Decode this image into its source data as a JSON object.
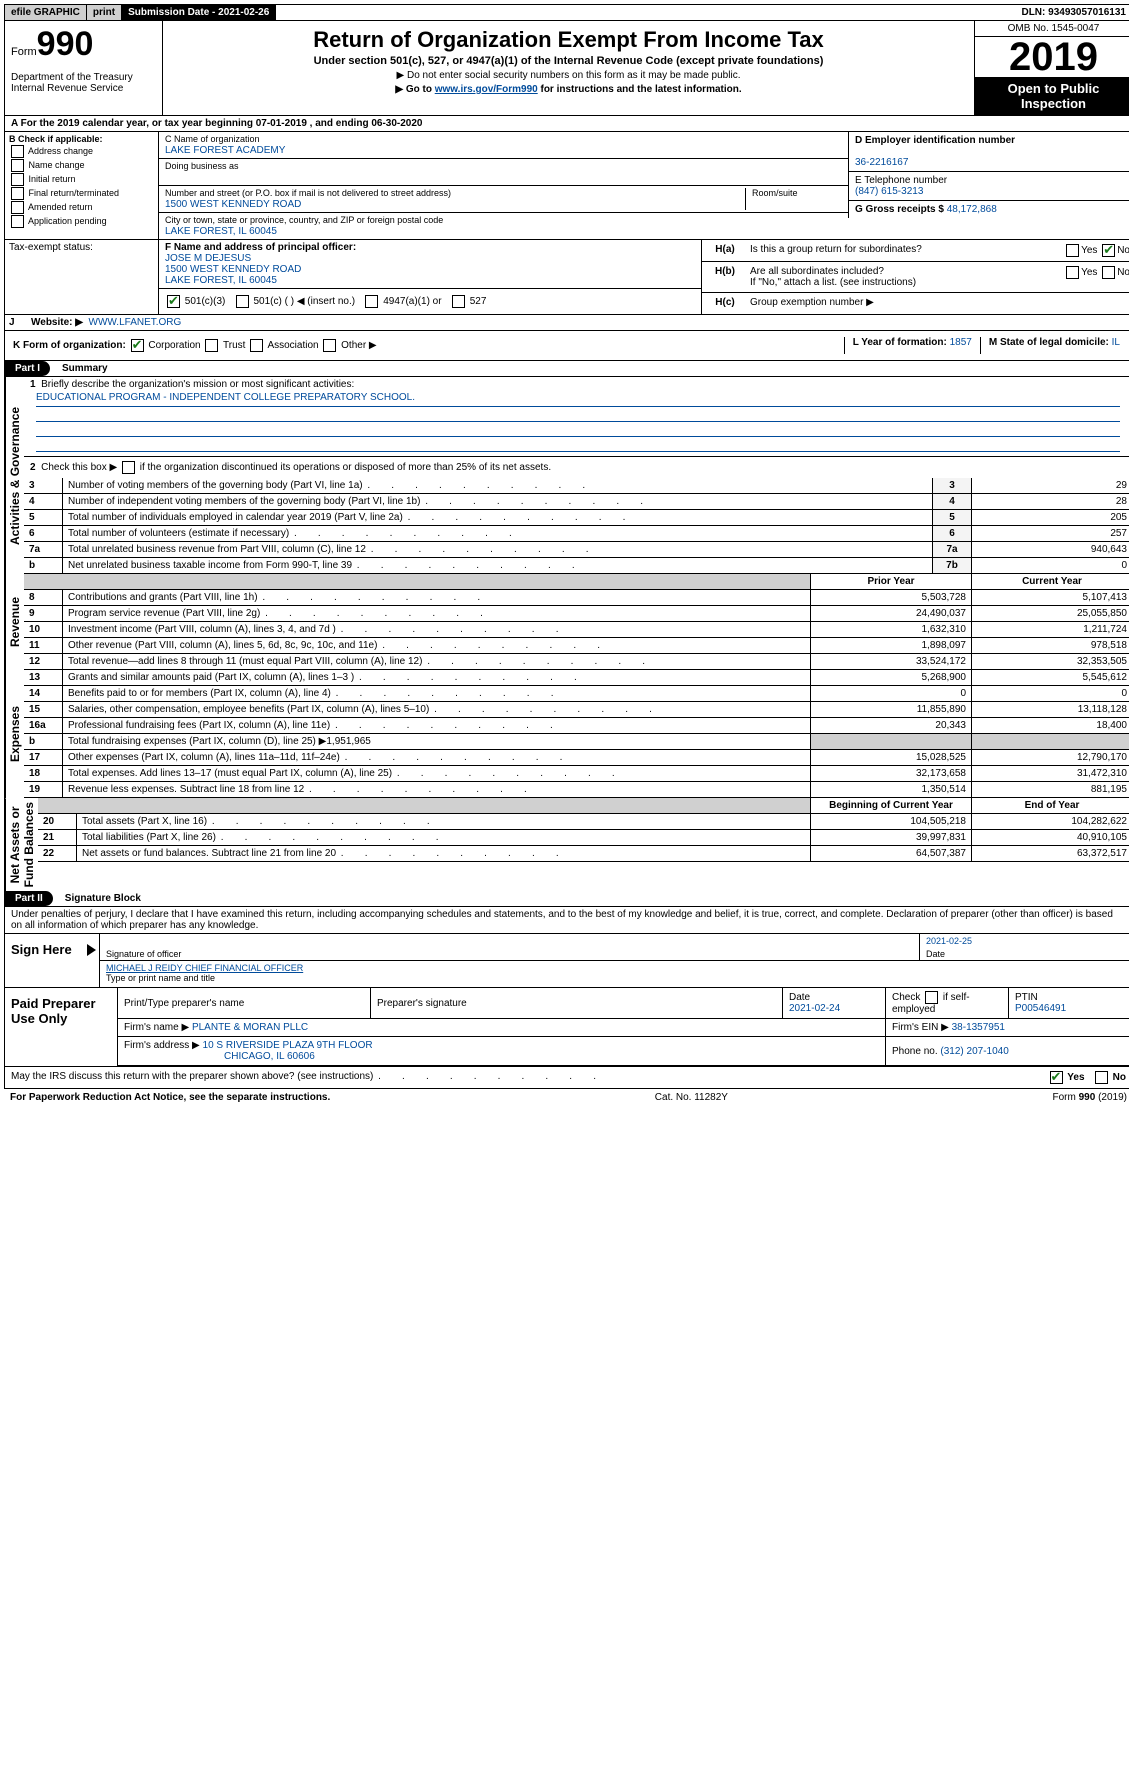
{
  "topbar": {
    "efile": "efile GRAPHIC",
    "print": "print",
    "submission": "Submission Date - 2021-02-26",
    "dln": "DLN: 93493057016131"
  },
  "header": {
    "form_word": "Form",
    "form_num": "990",
    "dept": "Department of the Treasury\nInternal Revenue Service",
    "title": "Return of Organization Exempt From Income Tax",
    "sub1": "Under section 501(c), 527, or 4947(a)(1) of the Internal Revenue Code (except private foundations)",
    "sub2": "▶ Do not enter social security numbers on this form as it may be made public.",
    "sub3_pre": "▶ Go to ",
    "sub3_link": "www.irs.gov/Form990",
    "sub3_post": " for instructions and the latest information.",
    "omb": "OMB No. 1545-0047",
    "year": "2019",
    "open": "Open to Public Inspection"
  },
  "periodA": "For the 2019 calendar year, or tax year beginning 07-01-2019   , and ending 06-30-2020",
  "sectionB": {
    "label": "B Check if applicable:",
    "opts": [
      "Address change",
      "Name change",
      "Initial return",
      "Final return/terminated",
      "Amended return",
      "Application pending"
    ]
  },
  "mid": {
    "c_label": "C Name of organization",
    "c_val": "LAKE FOREST ACADEMY",
    "dba_label": "Doing business as",
    "addr_label": "Number and street (or P.O. box if mail is not delivered to street address)",
    "room_label": "Room/suite",
    "addr_val": "1500 WEST KENNEDY ROAD",
    "city_label": "City or town, state or province, country, and ZIP or foreign postal code",
    "city_val": "LAKE FOREST, IL  60045",
    "f_label": "F Name and address of principal officer:",
    "f_name": "JOSE M DEJESUS",
    "f_addr1": "1500 WEST KENNEDY ROAD",
    "f_addr2": "LAKE FOREST, IL  60045"
  },
  "right": {
    "d_label": "D Employer identification number",
    "d_val": "36-2216167",
    "e_label": "E Telephone number",
    "e_val": "(847) 615-3213",
    "g_label": "G Gross receipts $ ",
    "g_val": "48,172,868",
    "ha_label": "Is this a group return for subordinates?",
    "hb_label": "Are all subordinates included?",
    "hb_note": "If \"No,\" attach a list. (see instructions)",
    "hc_label": "Group exemption number ▶",
    "yes": "Yes",
    "no": "No"
  },
  "status": {
    "label": "Tax-exempt status:",
    "o1": "501(c)(3)",
    "o2": "501(c) (   ) ◀ (insert no.)",
    "o3": "4947(a)(1) or",
    "o4": "527"
  },
  "website": {
    "label": "Website: ▶",
    "val": "WWW.LFANET.ORG"
  },
  "K": {
    "label": "K Form of organization:",
    "c": "Corporation",
    "t": "Trust",
    "a": "Association",
    "o": "Other ▶"
  },
  "L": {
    "label": "L Year of formation:",
    "val": "1857"
  },
  "M": {
    "label": "M State of legal domicile:",
    "val": "IL"
  },
  "part1": {
    "tab": "Part I",
    "title": "Summary"
  },
  "mission": {
    "q1": "Briefly describe the organization's mission or most significant activities:",
    "val": "EDUCATIONAL PROGRAM - INDEPENDENT COLLEGE PREPARATORY SCHOOL."
  },
  "line2": "Check this box ▶       if the organization discontinued its operations or disposed of more than 25% of its net assets.",
  "rows_gov": [
    {
      "n": "3",
      "d": "Number of voting members of the governing body (Part VI, line 1a)",
      "b": "3",
      "v": "29"
    },
    {
      "n": "4",
      "d": "Number of independent voting members of the governing body (Part VI, line 1b)",
      "b": "4",
      "v": "28"
    },
    {
      "n": "5",
      "d": "Total number of individuals employed in calendar year 2019 (Part V, line 2a)",
      "b": "5",
      "v": "205"
    },
    {
      "n": "6",
      "d": "Total number of volunteers (estimate if necessary)",
      "b": "6",
      "v": "257"
    },
    {
      "n": "7a",
      "d": "Total unrelated business revenue from Part VIII, column (C), line 12",
      "b": "7a",
      "v": "940,643"
    },
    {
      "n": "b",
      "d": "Net unrelated business taxable income from Form 990-T, line 39",
      "b": "7b",
      "v": "0"
    }
  ],
  "col_headers": {
    "prior": "Prior Year",
    "current": "Current Year",
    "boy": "Beginning of Current Year",
    "eoy": "End of Year"
  },
  "rows_rev": [
    {
      "n": "8",
      "d": "Contributions and grants (Part VIII, line 1h)",
      "p": "5,503,728",
      "c": "5,107,413"
    },
    {
      "n": "9",
      "d": "Program service revenue (Part VIII, line 2g)",
      "p": "24,490,037",
      "c": "25,055,850"
    },
    {
      "n": "10",
      "d": "Investment income (Part VIII, column (A), lines 3, 4, and 7d )",
      "p": "1,632,310",
      "c": "1,211,724"
    },
    {
      "n": "11",
      "d": "Other revenue (Part VIII, column (A), lines 5, 6d, 8c, 9c, 10c, and 11e)",
      "p": "1,898,097",
      "c": "978,518"
    },
    {
      "n": "12",
      "d": "Total revenue—add lines 8 through 11 (must equal Part VIII, column (A), line 12)",
      "p": "33,524,172",
      "c": "32,353,505"
    }
  ],
  "rows_exp": [
    {
      "n": "13",
      "d": "Grants and similar amounts paid (Part IX, column (A), lines 1–3 )",
      "p": "5,268,900",
      "c": "5,545,612"
    },
    {
      "n": "14",
      "d": "Benefits paid to or for members (Part IX, column (A), line 4)",
      "p": "0",
      "c": "0"
    },
    {
      "n": "15",
      "d": "Salaries, other compensation, employee benefits (Part IX, column (A), lines 5–10)",
      "p": "11,855,890",
      "c": "13,118,128"
    },
    {
      "n": "16a",
      "d": "Professional fundraising fees (Part IX, column (A), line 11e)",
      "p": "20,343",
      "c": "18,400"
    },
    {
      "n": "b",
      "d": "Total fundraising expenses (Part IX, column (D), line 25) ▶1,951,965",
      "p": "",
      "c": "",
      "grey": true
    },
    {
      "n": "17",
      "d": "Other expenses (Part IX, column (A), lines 11a–11d, 11f–24e)",
      "p": "15,028,525",
      "c": "12,790,170"
    },
    {
      "n": "18",
      "d": "Total expenses. Add lines 13–17 (must equal Part IX, column (A), line 25)",
      "p": "32,173,658",
      "c": "31,472,310"
    },
    {
      "n": "19",
      "d": "Revenue less expenses. Subtract line 18 from line 12",
      "p": "1,350,514",
      "c": "881,195"
    }
  ],
  "rows_net": [
    {
      "n": "20",
      "d": "Total assets (Part X, line 16)",
      "p": "104,505,218",
      "c": "104,282,622"
    },
    {
      "n": "21",
      "d": "Total liabilities (Part X, line 26)",
      "p": "39,997,831",
      "c": "40,910,105"
    },
    {
      "n": "22",
      "d": "Net assets or fund balances. Subtract line 21 from line 20",
      "p": "64,507,387",
      "c": "63,372,517"
    }
  ],
  "sections": {
    "gov": "Activities & Governance",
    "rev": "Revenue",
    "exp": "Expenses",
    "net": "Net Assets or\nFund Balances"
  },
  "part2": {
    "tab": "Part II",
    "title": "Signature Block"
  },
  "perjury": "Under penalties of perjury, I declare that I have examined this return, including accompanying schedules and statements, and to the best of my knowledge and belief, it is true, correct, and complete. Declaration of preparer (other than officer) is based on all information of which preparer has any knowledge.",
  "sign": {
    "here": "Sign Here",
    "sig_officer": "Signature of officer",
    "date_label": "Date",
    "date_val": "2021-02-25",
    "name": "MICHAEL J REIDY  CHIEF FINANCIAL OFFICER",
    "name_cap": "Type or print name and title"
  },
  "paid": {
    "label": "Paid Preparer Use Only",
    "h1": "Print/Type preparer's name",
    "h2": "Preparer's signature",
    "h3": "Date",
    "h3v": "2021-02-24",
    "h4": "Check         if self-employed",
    "h5": "PTIN",
    "ptin": "P00546491",
    "firm_l": "Firm's name    ▶",
    "firm_v": "PLANTE & MORAN PLLC",
    "ein_l": "Firm's EIN ▶",
    "ein_v": "38-1357951",
    "addr_l": "Firm's address ▶",
    "addr_v": "10 S RIVERSIDE PLAZA 9TH FLOOR",
    "addr_v2": "CHICAGO, IL  60606",
    "phone_l": "Phone no.",
    "phone_v": "(312) 207-1040"
  },
  "discuss": "May the IRS discuss this return with the preparer shown above? (see instructions)",
  "footer": {
    "l": "For Paperwork Reduction Act Notice, see the separate instructions.",
    "c": "Cat. No. 11282Y",
    "r": "Form 990 (2019)"
  }
}
